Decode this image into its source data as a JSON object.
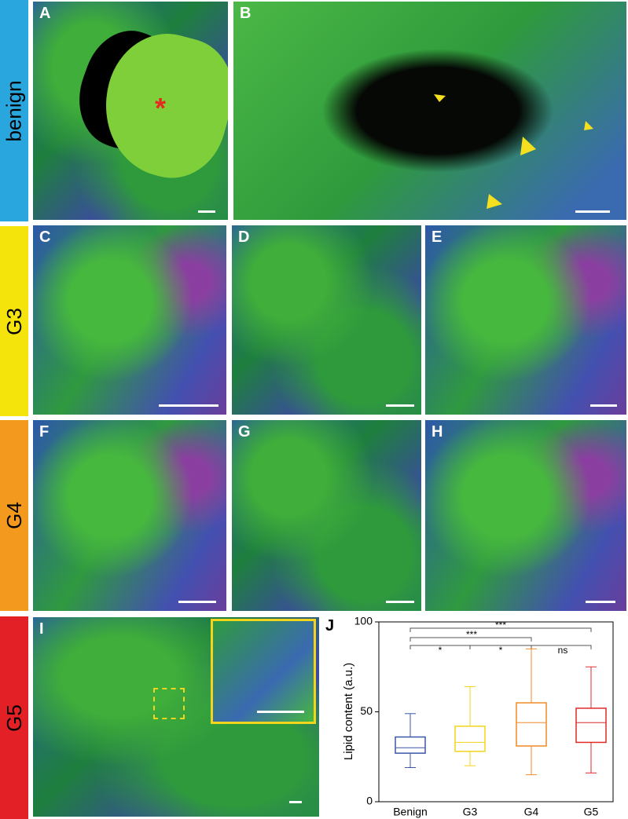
{
  "rows": [
    {
      "label": "benign"
    },
    {
      "label": "G3"
    },
    {
      "label": "G4"
    },
    {
      "label": "G5"
    }
  ],
  "panels": [
    {
      "letter": "A",
      "mark": "*"
    },
    {
      "letter": "B"
    },
    {
      "letter": "C"
    },
    {
      "letter": "D"
    },
    {
      "letter": "E"
    },
    {
      "letter": "F"
    },
    {
      "letter": "G"
    },
    {
      "letter": "H"
    },
    {
      "letter": "I"
    },
    {
      "letter": "J"
    }
  ],
  "chart_data": {
    "type": "box",
    "y_label": "Lipid content (a.u.)",
    "categories": [
      "Benign",
      "G3",
      "G4",
      "G5"
    ],
    "colors": [
      "#3b57a8",
      "#f2d51c",
      "#f08a24",
      "#e02a2a"
    ],
    "boxes": [
      {
        "whislo": 19,
        "q1": 27,
        "med": 30,
        "q3": 36,
        "whishi": 49
      },
      {
        "whislo": 20,
        "q1": 28,
        "med": 33,
        "q3": 42,
        "whishi": 64
      },
      {
        "whislo": 15,
        "q1": 31,
        "med": 44,
        "q3": 55,
        "whishi": 85
      },
      {
        "whislo": 16,
        "q1": 33,
        "med": 44,
        "q3": 52,
        "whishi": 75
      }
    ],
    "ylim": [
      0,
      100
    ],
    "yticks": [
      0,
      50,
      100
    ],
    "annotations": [
      "***",
      "***",
      "*",
      "*",
      "ns"
    ]
  }
}
